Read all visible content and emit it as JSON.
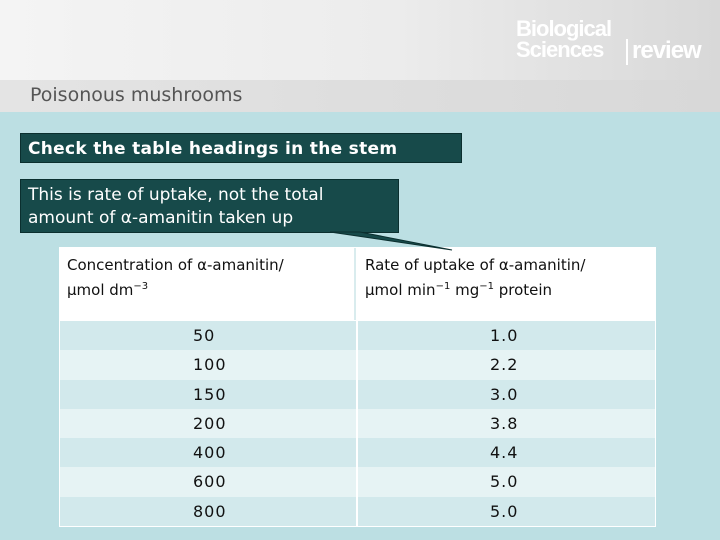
{
  "logo": {
    "line1": "Biological",
    "line2": "Sciences",
    "line3": "review"
  },
  "subtitle": "Poisonous mushrooms",
  "callouts": {
    "heading_note": "Check the table headings in the stem",
    "uptake_note_line1": "This is rate of uptake, not the total",
    "uptake_note_line2": "amount of α-amanitin taken up"
  },
  "table": {
    "col1_header_line1": "Concentration of α-amanitin/",
    "col1_header_line2": "μmol dm",
    "col1_header_exp": "−3",
    "col2_header_line1": "Rate of uptake of α-amanitin/",
    "col2_header_line2a": "μmol min",
    "col2_header_exp1": "−1",
    "col2_header_line2b": " mg",
    "col2_header_exp2": "−1",
    "col2_header_line2c": " protein",
    "rows": [
      {
        "concentration": "50",
        "rate": "1.0"
      },
      {
        "concentration": "100",
        "rate": "2.2"
      },
      {
        "concentration": "150",
        "rate": "3.0"
      },
      {
        "concentration": "200",
        "rate": "3.8"
      },
      {
        "concentration": "400",
        "rate": "4.4"
      },
      {
        "concentration": "600",
        "rate": "5.0"
      },
      {
        "concentration": "800",
        "rate": "5.0"
      }
    ]
  },
  "colors": {
    "background": "#bcdfe3",
    "callout": "#174a4a",
    "row_a": "#d2e9ec",
    "row_b": "#e6f3f4"
  }
}
